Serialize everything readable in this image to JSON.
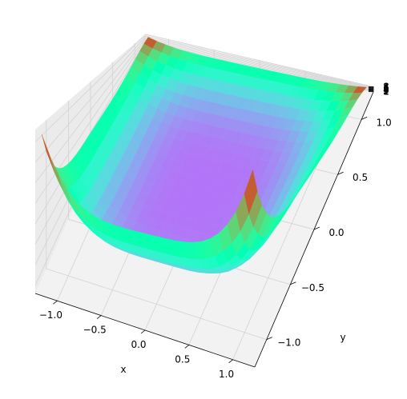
{
  "chart_data": {
    "type": "surface3d",
    "title": "",
    "xlabel": "x",
    "ylabel": "y",
    "zlabel": "",
    "colormap": "rainbow",
    "grid": true,
    "xlim": [
      -1.25,
      1.25
    ],
    "ylim": [
      -1.25,
      1.25
    ],
    "zlim": [
      0.6,
      8.6
    ],
    "xticks": [
      "−1.0",
      "−0.5",
      "0.0",
      "0.5",
      "1.0"
    ],
    "xtick_values": [
      -1.0,
      -0.5,
      0.0,
      0.5,
      1.0
    ],
    "yticks": [
      "−1.0",
      "−0.5",
      "0.0",
      "0.5",
      "1.0"
    ],
    "ytick_values": [
      -1.0,
      -0.5,
      0.0,
      0.5,
      1.0
    ],
    "zticks": [
      "1",
      "2",
      "3",
      "4",
      "5",
      "6",
      "7",
      "8"
    ],
    "ztick_values": [
      1,
      2,
      3,
      4,
      5,
      6,
      7,
      8
    ],
    "surface": {
      "x_range": [
        -1.2,
        1.2
      ],
      "y_range": [
        -1.2,
        1.2
      ],
      "grid_size": 25,
      "z_corner_value": 8.3,
      "z_center_value": 1.0,
      "description_terms": {
        "z_min": 1.0,
        "z_max": 8.3
      }
    }
  }
}
